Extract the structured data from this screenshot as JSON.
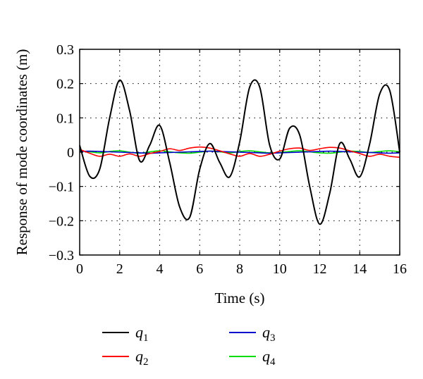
{
  "chart_data": {
    "type": "line",
    "title": "",
    "xlabel": "Time (s)",
    "ylabel": "Response of mode coordinates (m)",
    "xlim": [
      0,
      16
    ],
    "ylim": [
      -0.3,
      0.3
    ],
    "xticks": [
      0,
      2,
      4,
      6,
      8,
      10,
      12,
      14,
      16
    ],
    "xtick_labels": [
      "0",
      "2",
      "4",
      "6",
      "8",
      "10",
      "12",
      "14",
      "16"
    ],
    "yticks": [
      -0.3,
      -0.2,
      -0.1,
      0,
      0.1,
      0.2,
      0.3
    ],
    "ytick_labels": [
      "−0.3",
      "−0.2",
      "−0.1",
      "0",
      "0.1",
      "0.2",
      "0.3"
    ],
    "grid": true,
    "grid_style": "dotted",
    "legend_position": "bottom",
    "legend_columns": 2,
    "x": [
      0,
      0.5,
      1,
      1.5,
      2,
      2.5,
      3,
      3.5,
      4,
      4.5,
      5,
      5.5,
      6,
      6.5,
      7,
      7.5,
      8,
      8.5,
      9,
      9.5,
      10,
      10.5,
      11,
      11.5,
      12,
      12.5,
      13,
      13.5,
      14,
      14.5,
      15,
      15.5,
      16
    ],
    "series": [
      {
        "name": "q",
        "subscript": "1",
        "color": "#000000",
        "values": [
          0.02,
          -0.07,
          -0.05,
          0.1,
          0.21,
          0.12,
          -0.025,
          0.02,
          0.078,
          -0.03,
          -0.16,
          -0.19,
          -0.05,
          0.025,
          -0.03,
          -0.072,
          0.03,
          0.19,
          0.19,
          0.02,
          -0.02,
          0.07,
          0.05,
          -0.1,
          -0.21,
          -0.12,
          0.025,
          -0.02,
          -0.072,
          0.025,
          0.17,
          0.18,
          0.0
        ]
      },
      {
        "name": "q",
        "subscript": "2",
        "color": "#ff0000",
        "values": [
          0.008,
          -0.003,
          -0.012,
          -0.006,
          -0.012,
          -0.005,
          -0.012,
          -0.004,
          0.002,
          0.01,
          0.005,
          0.012,
          0.015,
          0.012,
          0.004,
          -0.005,
          -0.012,
          -0.004,
          -0.012,
          -0.006,
          0.003,
          0.01,
          0.012,
          0.005,
          0.01,
          0.014,
          0.012,
          0.004,
          -0.004,
          -0.012,
          -0.006,
          -0.012,
          -0.015
        ]
      },
      {
        "name": "q",
        "subscript": "3",
        "color": "#0000cc",
        "values": [
          0.002,
          0.003,
          0.002,
          0.001,
          0.0,
          -0.001,
          -0.002,
          -0.003,
          -0.002,
          -0.001,
          0.0,
          0.001,
          0.002,
          0.003,
          0.002,
          0.001,
          0.0,
          -0.001,
          -0.002,
          -0.003,
          -0.002,
          -0.001,
          0.0,
          0.001,
          0.002,
          0.003,
          0.002,
          0.001,
          0.0,
          -0.001,
          -0.002,
          -0.003,
          -0.002
        ]
      },
      {
        "name": "q",
        "subscript": "4",
        "color": "#00dd00",
        "values": [
          0.004,
          0.001,
          -0.002,
          0.002,
          0.004,
          0.0,
          -0.003,
          0.001,
          0.004,
          0.001,
          -0.002,
          -0.003,
          0.0,
          0.003,
          0.001,
          -0.002,
          0.002,
          0.004,
          0.001,
          -0.002,
          -0.001,
          0.002,
          0.004,
          0.001,
          -0.002,
          -0.003,
          0.0,
          0.003,
          0.002,
          -0.001,
          0.002,
          0.004,
          0.001
        ]
      }
    ]
  }
}
